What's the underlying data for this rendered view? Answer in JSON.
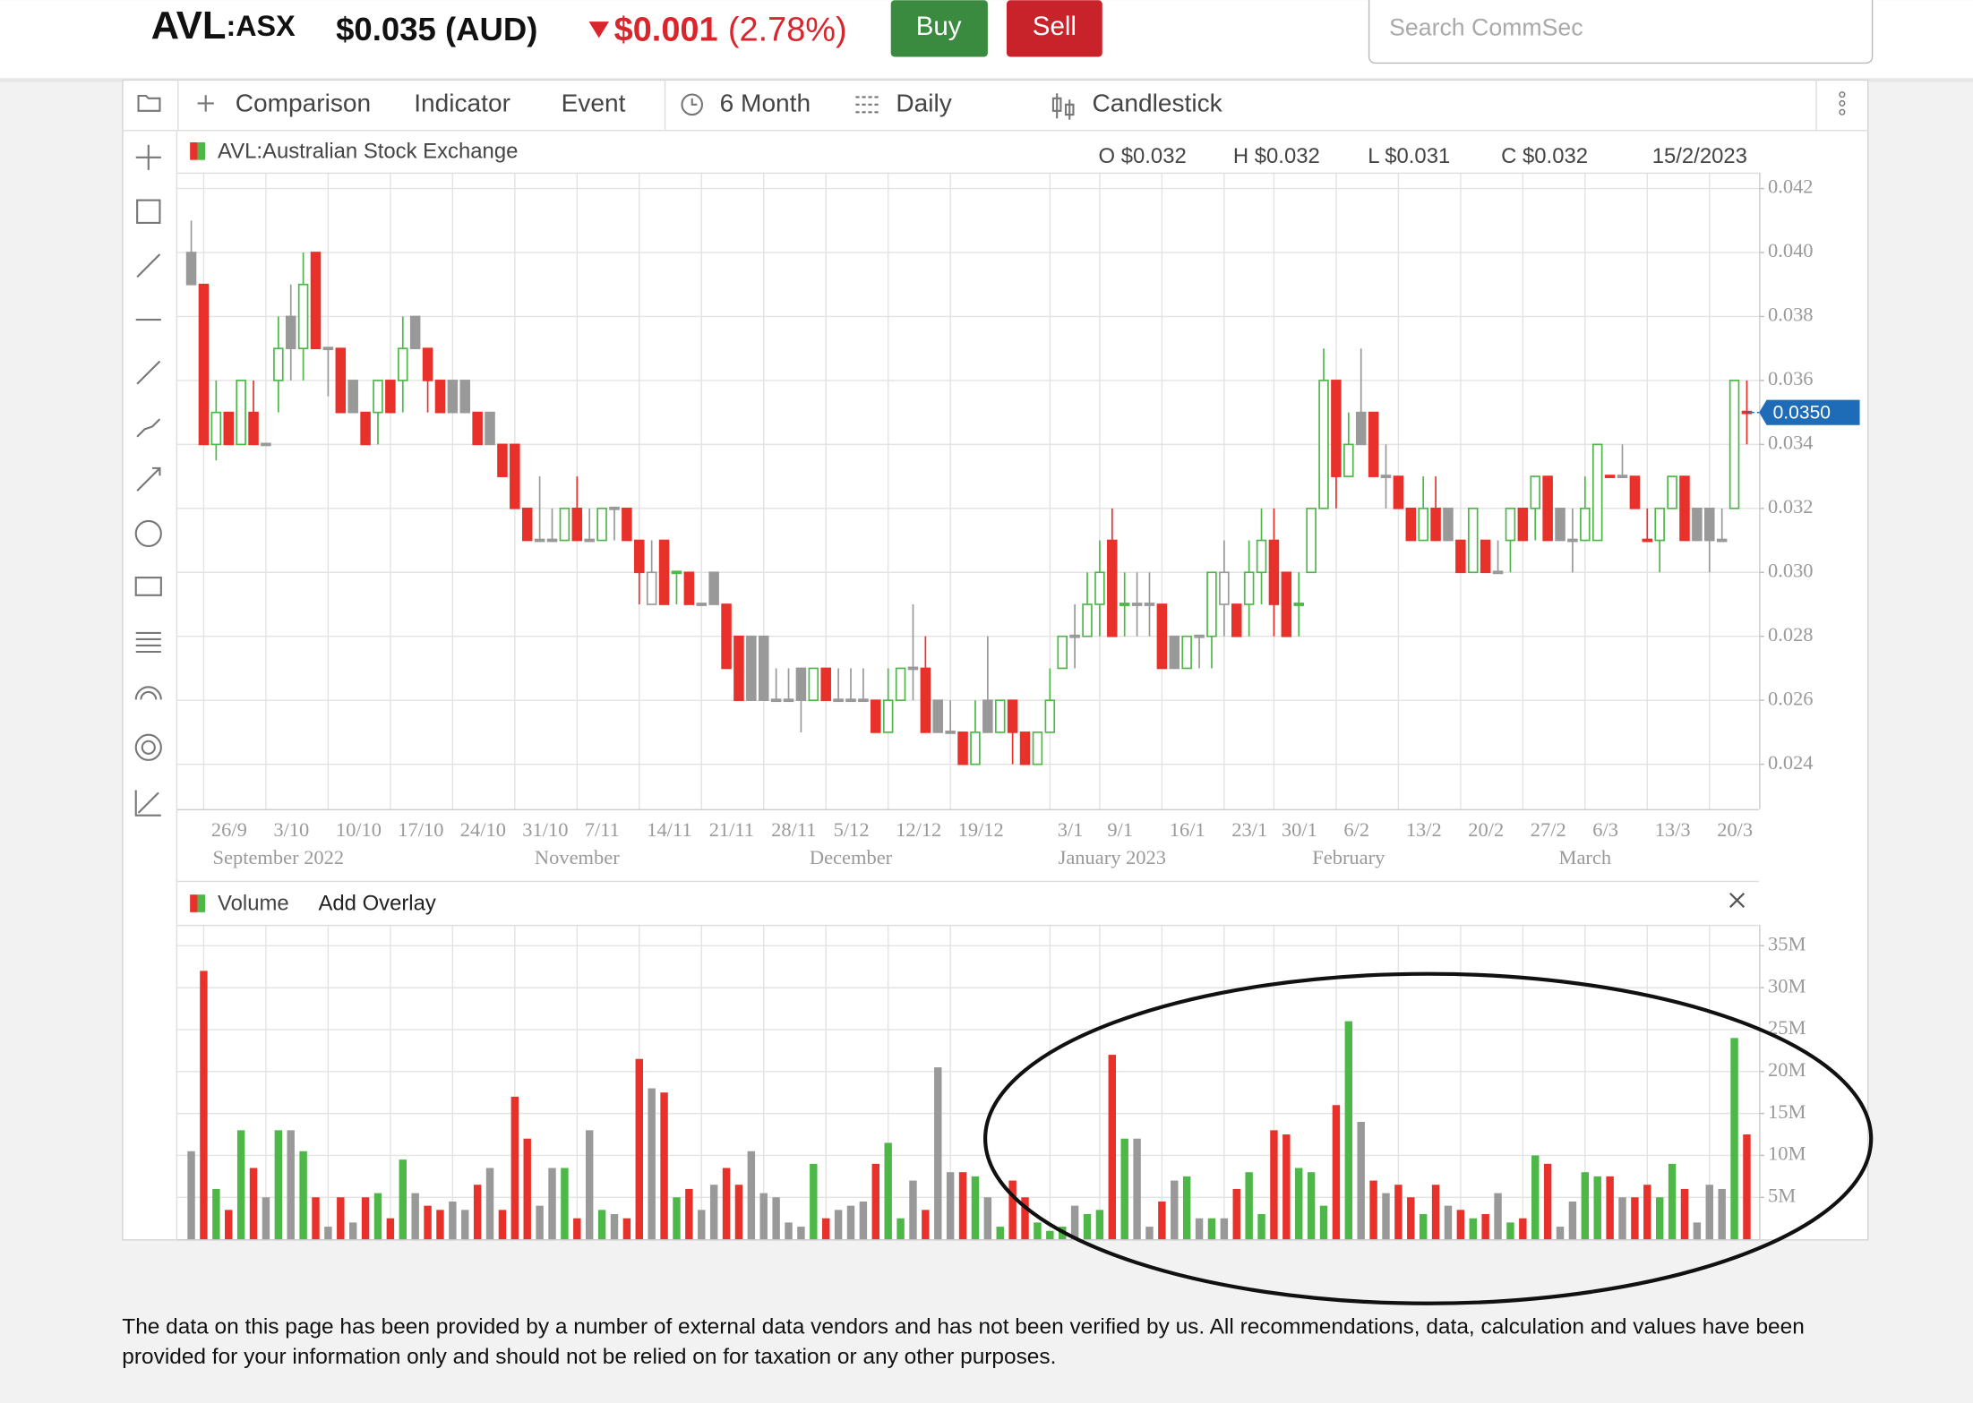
{
  "header": {
    "symbol": "AVL",
    "exchange": ":ASX",
    "price": "$0.035 (AUD)",
    "change": "$0.001",
    "change_pct": "(2.78%)",
    "buy": "Buy",
    "sell": "Sell",
    "search_placeholder": "Search CommSec"
  },
  "toolbar": {
    "comparison": "Comparison",
    "indicator": "Indicator",
    "event": "Event",
    "period": "6 Month",
    "interval": "Daily",
    "chart_type": "Candlestick"
  },
  "chart_data": [
    {
      "type": "candlestick",
      "title": "AVL:Australian Stock Exchange",
      "ohlc_labels": [
        "O $0.032",
        "H $0.032",
        "L $0.031",
        "C $0.032"
      ],
      "date": "15/2/2023",
      "last_price": {
        "value": 0.035,
        "label": "0.0350"
      },
      "colors": {
        "up": "#4db848",
        "down": "#e8312a",
        "flat": "#999999"
      },
      "grid": true,
      "ylim": [
        0.0226,
        0.0425
      ],
      "yticks": [
        0.042,
        {
          "value": 0.04,
          "label": "0.040"
        },
        0.038,
        0.036,
        0.034,
        0.032,
        {
          "value": 0.03,
          "label": "0.030"
        },
        0.028,
        0.026,
        0.024
      ],
      "categories": [
        null,
        "26/9",
        null,
        null,
        null,
        null,
        "3/10",
        null,
        null,
        null,
        null,
        "10/10",
        null,
        null,
        null,
        null,
        "17/10",
        null,
        null,
        null,
        null,
        "24/10",
        null,
        null,
        null,
        null,
        "31/10",
        null,
        null,
        null,
        null,
        "7/11",
        null,
        null,
        null,
        null,
        "14/11",
        null,
        null,
        null,
        null,
        "21/11",
        null,
        null,
        null,
        null,
        "28/11",
        null,
        null,
        null,
        null,
        "5/12",
        null,
        null,
        null,
        null,
        "12/12",
        null,
        null,
        null,
        null,
        "19/12",
        null,
        null,
        null,
        null,
        null,
        null,
        null,
        "3/1",
        null,
        null,
        null,
        "9/1",
        null,
        null,
        null,
        null,
        "16/1",
        null,
        null,
        null,
        null,
        "23/1",
        null,
        null,
        null,
        "30/1",
        null,
        null,
        null,
        null,
        "6/2",
        null,
        null,
        null,
        null,
        "13/2",
        null,
        null,
        null,
        null,
        "20/2",
        null,
        null,
        null,
        null,
        "27/2",
        null,
        null,
        null,
        null,
        "6/3",
        null,
        null,
        null,
        null,
        "13/3",
        null,
        null,
        null,
        null,
        "20/3",
        null,
        null,
        null
      ],
      "month_labels": [
        null,
        null,
        null,
        null,
        null,
        null,
        null,
        "September 2022",
        null,
        null,
        null,
        null,
        null,
        null,
        null,
        null,
        null,
        null,
        null,
        null,
        null,
        null,
        null,
        null,
        null,
        null,
        null,
        null,
        null,
        null,
        null,
        "November",
        null,
        null,
        null,
        null,
        null,
        null,
        null,
        null,
        null,
        null,
        null,
        null,
        null,
        null,
        null,
        null,
        null,
        null,
        null,
        null,
        null,
        "December",
        null,
        null,
        null,
        null,
        null,
        null,
        null,
        null,
        null,
        null,
        null,
        null,
        null,
        null,
        null,
        null,
        null,
        null,
        null,
        null,
        "January 2023",
        null,
        null,
        null,
        null,
        null,
        null,
        null,
        null,
        null,
        null,
        null,
        null,
        null,
        null,
        null,
        null,
        null,
        null,
        "February",
        null,
        null,
        null,
        null,
        null,
        null,
        null,
        null,
        null,
        null,
        null,
        null,
        null,
        null,
        null,
        null,
        null,
        null,
        "March",
        null,
        null,
        null,
        null,
        null,
        null,
        null,
        null,
        null,
        null,
        null,
        null,
        null
      ],
      "open": [
        0.04,
        0.039,
        0.034,
        0.035,
        0.034,
        0.035,
        0.034,
        0.036,
        0.038,
        0.037,
        0.04,
        0.037,
        0.037,
        0.036,
        0.035,
        0.035,
        0.036,
        0.036,
        0.038,
        0.037,
        0.036,
        0.036,
        0.036,
        0.035,
        0.035,
        0.034,
        0.034,
        0.032,
        0.031,
        0.031,
        0.031,
        0.032,
        0.031,
        0.031,
        0.032,
        0.032,
        0.031,
        0.029,
        0.031,
        0.03,
        0.03,
        0.029,
        0.03,
        0.029,
        0.028,
        0.028,
        0.028,
        0.026,
        0.026,
        0.027,
        0.026,
        0.027,
        0.026,
        0.026,
        0.026,
        0.026,
        0.025,
        0.026,
        0.027,
        0.027,
        0.026,
        0.025,
        0.025,
        0.024,
        0.026,
        0.025,
        0.026,
        0.025,
        0.024,
        0.025,
        0.027,
        0.028,
        0.028,
        0.029,
        0.031,
        0.029,
        0.029,
        0.029,
        0.029,
        0.028,
        0.027,
        0.028,
        0.028,
        0.029,
        0.029,
        0.029,
        0.03,
        0.031,
        0.03,
        0.029,
        0.03,
        0.032,
        0.036,
        0.033,
        0.035,
        0.035,
        0.033,
        0.033,
        0.032,
        0.031,
        0.032,
        0.032,
        0.031,
        0.03,
        0.031,
        0.03,
        0.031,
        0.032,
        0.032,
        0.033,
        0.032,
        0.031,
        0.031,
        0.031,
        0.033,
        0.033,
        0.033,
        0.031,
        0.031,
        0.032,
        0.033,
        0.032,
        0.032,
        0.031,
        0.032,
        0.035
      ],
      "high": [
        0.041,
        0.039,
        0.036,
        0.035,
        0.036,
        0.036,
        0.034,
        0.038,
        0.039,
        0.04,
        0.04,
        0.037,
        0.037,
        0.036,
        0.035,
        0.036,
        0.036,
        0.038,
        0.038,
        0.037,
        0.036,
        0.036,
        0.036,
        0.035,
        0.035,
        0.034,
        0.034,
        0.032,
        0.033,
        0.032,
        0.032,
        0.033,
        0.032,
        0.032,
        0.032,
        0.032,
        0.031,
        0.031,
        0.031,
        0.03,
        0.03,
        0.029,
        0.03,
        0.029,
        0.028,
        0.028,
        0.028,
        0.027,
        0.027,
        0.027,
        0.027,
        0.027,
        0.027,
        0.027,
        0.027,
        0.026,
        0.027,
        0.027,
        0.029,
        0.028,
        0.026,
        0.026,
        0.025,
        0.026,
        0.028,
        0.026,
        0.026,
        0.025,
        0.025,
        0.027,
        0.028,
        0.029,
        0.03,
        0.031,
        0.032,
        0.03,
        0.03,
        0.03,
        0.029,
        0.028,
        0.028,
        0.028,
        0.03,
        0.031,
        0.029,
        0.031,
        0.032,
        0.032,
        0.03,
        0.03,
        0.032,
        0.037,
        0.036,
        0.035,
        0.037,
        0.035,
        0.034,
        0.033,
        0.032,
        0.033,
        0.033,
        0.032,
        0.031,
        0.032,
        0.031,
        0.031,
        0.032,
        0.032,
        0.033,
        0.033,
        0.032,
        0.032,
        0.033,
        0.034,
        0.033,
        0.034,
        0.033,
        0.032,
        0.032,
        0.033,
        0.033,
        0.032,
        0.032,
        0.032,
        0.036,
        0.036
      ],
      "low": [
        0.039,
        0.034,
        0.0335,
        0.034,
        0.034,
        0.034,
        0.034,
        0.035,
        0.036,
        0.036,
        0.037,
        0.0355,
        0.035,
        0.035,
        0.034,
        0.034,
        0.035,
        0.035,
        0.037,
        0.035,
        0.035,
        0.035,
        0.035,
        0.034,
        0.034,
        0.033,
        0.032,
        0.031,
        0.031,
        0.031,
        0.031,
        0.031,
        0.031,
        0.031,
        0.031,
        0.031,
        0.029,
        0.029,
        0.029,
        0.029,
        0.029,
        0.029,
        0.029,
        0.027,
        0.026,
        0.026,
        0.026,
        0.026,
        0.026,
        0.025,
        0.026,
        0.026,
        0.026,
        0.026,
        0.026,
        0.025,
        0.025,
        0.026,
        0.026,
        0.025,
        0.025,
        0.025,
        0.024,
        0.024,
        0.025,
        0.025,
        0.024,
        0.024,
        0.024,
        0.025,
        0.027,
        0.027,
        0.028,
        0.028,
        0.028,
        0.028,
        0.028,
        0.028,
        0.027,
        0.027,
        0.027,
        0.027,
        0.027,
        0.028,
        0.028,
        0.028,
        0.029,
        0.028,
        0.028,
        0.028,
        0.03,
        0.032,
        0.032,
        0.033,
        0.034,
        0.033,
        0.032,
        0.032,
        0.031,
        0.031,
        0.031,
        0.031,
        0.03,
        0.03,
        0.03,
        0.03,
        0.03,
        0.031,
        0.031,
        0.031,
        0.031,
        0.03,
        0.031,
        0.031,
        0.033,
        0.033,
        0.032,
        0.031,
        0.03,
        0.032,
        0.031,
        0.031,
        0.03,
        0.031,
        0.032,
        0.034
      ],
      "close": [
        0.039,
        0.034,
        0.035,
        0.034,
        0.036,
        0.034,
        0.034,
        0.037,
        0.037,
        0.039,
        0.037,
        0.037,
        0.035,
        0.035,
        0.034,
        0.036,
        0.035,
        0.037,
        0.037,
        0.036,
        0.035,
        0.035,
        0.035,
        0.034,
        0.034,
        0.033,
        0.032,
        0.031,
        0.031,
        0.031,
        0.032,
        0.031,
        0.031,
        0.032,
        0.032,
        0.031,
        0.03,
        0.03,
        0.029,
        0.03,
        0.029,
        0.029,
        0.029,
        0.027,
        0.026,
        0.026,
        0.026,
        0.026,
        0.026,
        0.026,
        0.027,
        0.026,
        0.026,
        0.026,
        0.026,
        0.025,
        0.026,
        0.027,
        0.027,
        0.025,
        0.025,
        0.025,
        0.024,
        0.025,
        0.025,
        0.026,
        0.025,
        0.024,
        0.025,
        0.026,
        0.028,
        0.028,
        0.029,
        0.03,
        0.028,
        0.029,
        0.029,
        0.029,
        0.027,
        0.027,
        0.028,
        0.028,
        0.03,
        0.03,
        0.028,
        0.03,
        0.031,
        0.029,
        0.028,
        0.029,
        0.032,
        0.036,
        0.033,
        0.034,
        0.034,
        0.033,
        0.033,
        0.032,
        0.031,
        0.032,
        0.031,
        0.031,
        0.03,
        0.032,
        0.03,
        0.03,
        0.032,
        0.031,
        0.033,
        0.031,
        0.031,
        0.031,
        0.032,
        0.034,
        0.033,
        0.033,
        0.032,
        0.031,
        0.032,
        0.033,
        0.031,
        0.031,
        0.031,
        0.031,
        0.036,
        0.035
      ]
    },
    {
      "type": "bar",
      "title": "Volume",
      "overlay_button": "Add Overlay",
      "grid": true,
      "ylim": [
        0,
        37500000
      ],
      "yticks": [
        {
          "value": 35000000,
          "label": "35M"
        },
        {
          "value": 30000000,
          "label": "30M"
        },
        {
          "value": 25000000,
          "label": "25M"
        },
        {
          "value": 20000000,
          "label": "20M"
        },
        {
          "value": 15000000,
          "label": "15M"
        },
        {
          "value": 10000000,
          "label": "10M"
        },
        {
          "value": 5000000,
          "label": "5M"
        }
      ],
      "values": [
        10500000,
        32000000,
        6000000,
        3500000,
        13000000,
        8500000,
        5000000,
        13000000,
        13000000,
        10500000,
        5000000,
        1500000,
        5000000,
        2000000,
        5000000,
        5500000,
        2500000,
        9500000,
        5500000,
        4000000,
        3500000,
        4500000,
        3500000,
        6500000,
        8500000,
        3500000,
        17000000,
        12000000,
        4000000,
        8500000,
        8500000,
        2500000,
        13000000,
        3500000,
        3000000,
        2500000,
        21500000,
        18000000,
        17500000,
        5000000,
        6000000,
        3500000,
        6500000,
        8500000,
        6500000,
        10500000,
        5500000,
        5000000,
        2000000,
        1500000,
        9000000,
        2500000,
        3500000,
        4000000,
        4500000,
        9000000,
        11500000,
        2500000,
        7000000,
        3500000,
        20500000,
        8000000,
        8000000,
        7500000,
        5000000,
        1500000,
        7000000,
        5000000,
        2000000,
        1000000,
        1500000,
        4000000,
        3000000,
        3500000,
        22000000,
        12000000,
        12000000,
        1500000,
        4500000,
        7000000,
        7500000,
        2500000,
        2500000,
        2500000,
        6000000,
        8000000,
        3000000,
        13000000,
        12500000,
        8500000,
        8000000,
        4000000,
        16000000,
        26000000,
        14000000,
        7000000,
        5500000,
        6500000,
        5000000,
        3000000,
        6500000,
        4000000,
        3500000,
        2500000,
        3000000,
        5500000,
        2000000,
        2500000,
        10000000,
        9000000,
        1500000,
        4500000,
        8000000,
        7500000,
        7500000,
        5000000,
        5000000,
        6500000,
        5000000,
        9000000,
        6000000,
        2000000,
        6500000,
        6000000,
        24000000,
        12500000
      ]
    }
  ],
  "footer": "The data on this page has been provided by a number of external data vendors and has not been verified by us. All recommendations, data, calculation and values have been provided for your information only and should not be relied on for taxation or any other purposes."
}
